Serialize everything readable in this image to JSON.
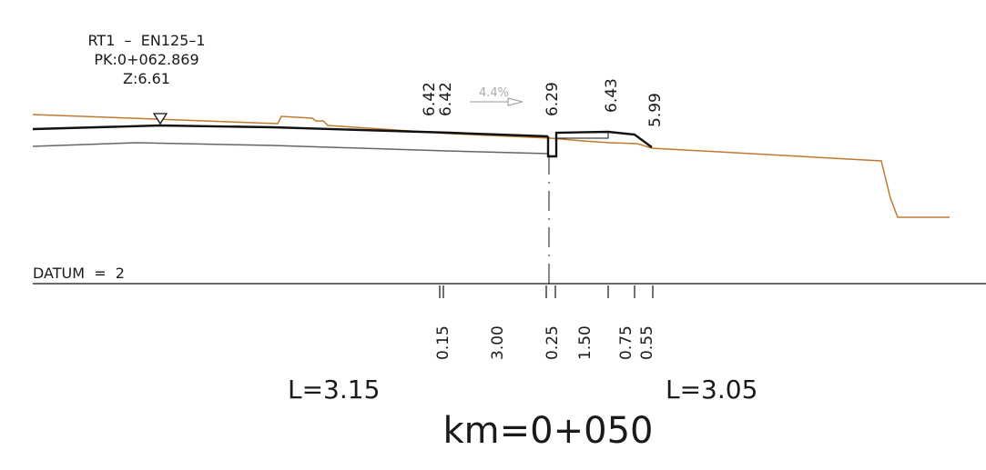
{
  "header": {
    "line1": "RT1  –  EN125–1",
    "line2": "PK:0+062.869",
    "line3": "Z:6.61"
  },
  "elevations": {
    "e1": "6.42",
    "e2": "6.42",
    "e3": "6.29",
    "e4": "6.43",
    "e5": "5.99"
  },
  "slope_label": "4.4%",
  "datum_label": "DATUM  =  2",
  "offsets": [
    "0.15",
    "3.00",
    "0.25",
    "1.50",
    "0.75",
    "0.55"
  ],
  "left_length": "L=3.15",
  "right_length": "L=3.05",
  "station": "km=0+050",
  "colors": {
    "terrain": "#c07a2c",
    "design": "#111111",
    "subgrade": "#666666",
    "slope_arrow": "#aaaaaa"
  }
}
